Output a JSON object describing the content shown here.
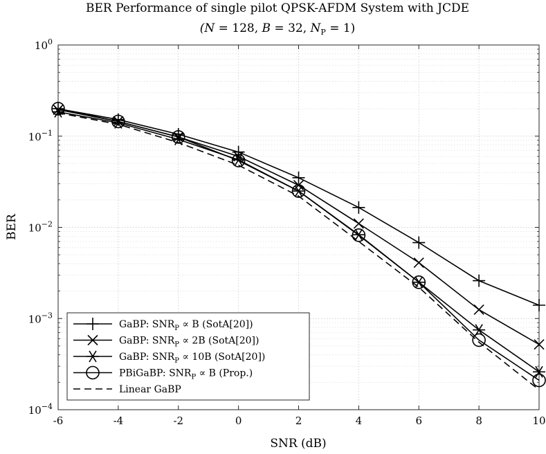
{
  "chart_data": {
    "type": "line",
    "title": "BER Performance of single pilot QPSK-AFDM System with JCDE",
    "subtitle": "(N = 128, B = 32, N_P = 1)",
    "xlabel": "SNR (dB)",
    "ylabel": "BER",
    "xlim": [
      -6,
      10
    ],
    "ylim": [
      0.0001,
      1
    ],
    "yscale": "log",
    "grid": true,
    "minor_grid": true,
    "legend_position": "bottom-left",
    "x_ticks": [
      "-6",
      "-4",
      "-2",
      "0",
      "2",
      "4",
      "6",
      "8",
      "10"
    ],
    "y_ticks": [
      {
        "value": 1,
        "base": "10",
        "exp": "0"
      },
      {
        "value": 0.1,
        "base": "10",
        "exp": "−1"
      },
      {
        "value": 0.01,
        "base": "10",
        "exp": "−2"
      },
      {
        "value": 0.001,
        "base": "10",
        "exp": "−3"
      },
      {
        "value": 0.0001,
        "base": "10",
        "exp": "−4"
      }
    ],
    "x": [
      -6,
      -4,
      -2,
      0,
      2,
      4,
      6,
      8,
      10
    ],
    "series": [
      {
        "name": "GaBP: SNR_P ∝ B (SotA[20])",
        "marker": "plus",
        "line": "solid",
        "values": [
          0.2,
          0.152,
          0.105,
          0.067,
          0.035,
          0.0165,
          0.0068,
          0.0026,
          0.0014
        ]
      },
      {
        "name": "GaBP: SNR_P ∝ 2B (SotA[20])",
        "marker": "x",
        "line": "solid",
        "values": [
          0.195,
          0.145,
          0.098,
          0.06,
          0.029,
          0.011,
          0.0041,
          0.00125,
          0.00052
        ]
      },
      {
        "name": "GaBP: SNR_P ∝ 10B (SotA[20])",
        "marker": "star",
        "line": "solid",
        "values": [
          0.185,
          0.14,
          0.092,
          0.055,
          0.025,
          0.0083,
          0.0025,
          0.00075,
          0.00026
        ]
      },
      {
        "name": "PBiGaBP: SNR_P ∝ B (Prop.)",
        "marker": "circle",
        "line": "solid",
        "values": [
          0.2,
          0.145,
          0.098,
          0.054,
          0.025,
          0.0082,
          0.0025,
          0.00058,
          0.00021
        ]
      },
      {
        "name": "Linear GaBP",
        "marker": "none",
        "line": "dashed",
        "values": [
          0.18,
          0.135,
          0.085,
          0.048,
          0.022,
          0.007,
          0.0022,
          0.00055,
          0.000165
        ]
      }
    ],
    "legend_entries": [
      {
        "pre": "GaBP: SNR",
        "sub": "P",
        "post": " ∝ B (SotA[20])"
      },
      {
        "pre": "GaBP: SNR",
        "sub": "P",
        "post": " ∝ 2B (SotA[20])"
      },
      {
        "pre": "GaBP: SNR",
        "sub": "P",
        "post": " ∝ 10B (SotA[20])"
      },
      {
        "pre": "PBiGaBP: SNR",
        "sub": "P",
        "post": " ∝ B (Prop.)"
      },
      {
        "pre": "Linear GaBP",
        "sub": "",
        "post": ""
      }
    ]
  }
}
